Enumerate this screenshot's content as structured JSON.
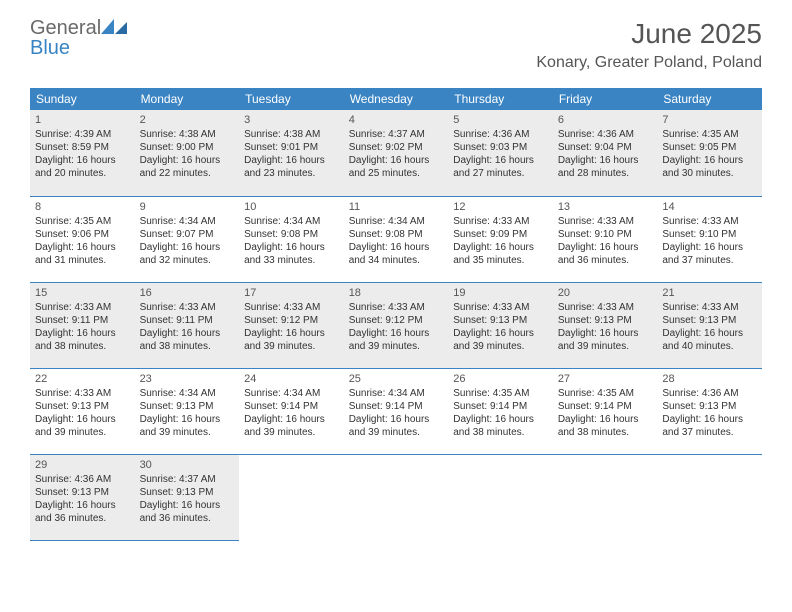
{
  "brand": {
    "general": "General",
    "blue": "Blue"
  },
  "header": {
    "month_title": "June 2025",
    "location": "Konary, Greater Poland, Poland"
  },
  "colors": {
    "header_bg": "#3a84c4",
    "header_text": "#ffffff",
    "shaded_bg": "#ececec",
    "border": "#3a84c4",
    "title_text": "#555555",
    "body_text": "#333333"
  },
  "calendar": {
    "day_headers": [
      "Sunday",
      "Monday",
      "Tuesday",
      "Wednesday",
      "Thursday",
      "Friday",
      "Saturday"
    ],
    "weeks": [
      {
        "shaded": true,
        "days": [
          {
            "n": "1",
            "sr": "Sunrise: 4:39 AM",
            "ss": "Sunset: 8:59 PM",
            "d1": "Daylight: 16 hours",
            "d2": "and 20 minutes."
          },
          {
            "n": "2",
            "sr": "Sunrise: 4:38 AM",
            "ss": "Sunset: 9:00 PM",
            "d1": "Daylight: 16 hours",
            "d2": "and 22 minutes."
          },
          {
            "n": "3",
            "sr": "Sunrise: 4:38 AM",
            "ss": "Sunset: 9:01 PM",
            "d1": "Daylight: 16 hours",
            "d2": "and 23 minutes."
          },
          {
            "n": "4",
            "sr": "Sunrise: 4:37 AM",
            "ss": "Sunset: 9:02 PM",
            "d1": "Daylight: 16 hours",
            "d2": "and 25 minutes."
          },
          {
            "n": "5",
            "sr": "Sunrise: 4:36 AM",
            "ss": "Sunset: 9:03 PM",
            "d1": "Daylight: 16 hours",
            "d2": "and 27 minutes."
          },
          {
            "n": "6",
            "sr": "Sunrise: 4:36 AM",
            "ss": "Sunset: 9:04 PM",
            "d1": "Daylight: 16 hours",
            "d2": "and 28 minutes."
          },
          {
            "n": "7",
            "sr": "Sunrise: 4:35 AM",
            "ss": "Sunset: 9:05 PM",
            "d1": "Daylight: 16 hours",
            "d2": "and 30 minutes."
          }
        ]
      },
      {
        "shaded": false,
        "days": [
          {
            "n": "8",
            "sr": "Sunrise: 4:35 AM",
            "ss": "Sunset: 9:06 PM",
            "d1": "Daylight: 16 hours",
            "d2": "and 31 minutes."
          },
          {
            "n": "9",
            "sr": "Sunrise: 4:34 AM",
            "ss": "Sunset: 9:07 PM",
            "d1": "Daylight: 16 hours",
            "d2": "and 32 minutes."
          },
          {
            "n": "10",
            "sr": "Sunrise: 4:34 AM",
            "ss": "Sunset: 9:08 PM",
            "d1": "Daylight: 16 hours",
            "d2": "and 33 minutes."
          },
          {
            "n": "11",
            "sr": "Sunrise: 4:34 AM",
            "ss": "Sunset: 9:08 PM",
            "d1": "Daylight: 16 hours",
            "d2": "and 34 minutes."
          },
          {
            "n": "12",
            "sr": "Sunrise: 4:33 AM",
            "ss": "Sunset: 9:09 PM",
            "d1": "Daylight: 16 hours",
            "d2": "and 35 minutes."
          },
          {
            "n": "13",
            "sr": "Sunrise: 4:33 AM",
            "ss": "Sunset: 9:10 PM",
            "d1": "Daylight: 16 hours",
            "d2": "and 36 minutes."
          },
          {
            "n": "14",
            "sr": "Sunrise: 4:33 AM",
            "ss": "Sunset: 9:10 PM",
            "d1": "Daylight: 16 hours",
            "d2": "and 37 minutes."
          }
        ]
      },
      {
        "shaded": true,
        "days": [
          {
            "n": "15",
            "sr": "Sunrise: 4:33 AM",
            "ss": "Sunset: 9:11 PM",
            "d1": "Daylight: 16 hours",
            "d2": "and 38 minutes."
          },
          {
            "n": "16",
            "sr": "Sunrise: 4:33 AM",
            "ss": "Sunset: 9:11 PM",
            "d1": "Daylight: 16 hours",
            "d2": "and 38 minutes."
          },
          {
            "n": "17",
            "sr": "Sunrise: 4:33 AM",
            "ss": "Sunset: 9:12 PM",
            "d1": "Daylight: 16 hours",
            "d2": "and 39 minutes."
          },
          {
            "n": "18",
            "sr": "Sunrise: 4:33 AM",
            "ss": "Sunset: 9:12 PM",
            "d1": "Daylight: 16 hours",
            "d2": "and 39 minutes."
          },
          {
            "n": "19",
            "sr": "Sunrise: 4:33 AM",
            "ss": "Sunset: 9:13 PM",
            "d1": "Daylight: 16 hours",
            "d2": "and 39 minutes."
          },
          {
            "n": "20",
            "sr": "Sunrise: 4:33 AM",
            "ss": "Sunset: 9:13 PM",
            "d1": "Daylight: 16 hours",
            "d2": "and 39 minutes."
          },
          {
            "n": "21",
            "sr": "Sunrise: 4:33 AM",
            "ss": "Sunset: 9:13 PM",
            "d1": "Daylight: 16 hours",
            "d2": "and 40 minutes."
          }
        ]
      },
      {
        "shaded": false,
        "days": [
          {
            "n": "22",
            "sr": "Sunrise: 4:33 AM",
            "ss": "Sunset: 9:13 PM",
            "d1": "Daylight: 16 hours",
            "d2": "and 39 minutes."
          },
          {
            "n": "23",
            "sr": "Sunrise: 4:34 AM",
            "ss": "Sunset: 9:13 PM",
            "d1": "Daylight: 16 hours",
            "d2": "and 39 minutes."
          },
          {
            "n": "24",
            "sr": "Sunrise: 4:34 AM",
            "ss": "Sunset: 9:14 PM",
            "d1": "Daylight: 16 hours",
            "d2": "and 39 minutes."
          },
          {
            "n": "25",
            "sr": "Sunrise: 4:34 AM",
            "ss": "Sunset: 9:14 PM",
            "d1": "Daylight: 16 hours",
            "d2": "and 39 minutes."
          },
          {
            "n": "26",
            "sr": "Sunrise: 4:35 AM",
            "ss": "Sunset: 9:14 PM",
            "d1": "Daylight: 16 hours",
            "d2": "and 38 minutes."
          },
          {
            "n": "27",
            "sr": "Sunrise: 4:35 AM",
            "ss": "Sunset: 9:14 PM",
            "d1": "Daylight: 16 hours",
            "d2": "and 38 minutes."
          },
          {
            "n": "28",
            "sr": "Sunrise: 4:36 AM",
            "ss": "Sunset: 9:13 PM",
            "d1": "Daylight: 16 hours",
            "d2": "and 37 minutes."
          }
        ]
      },
      {
        "shaded": true,
        "days": [
          {
            "n": "29",
            "sr": "Sunrise: 4:36 AM",
            "ss": "Sunset: 9:13 PM",
            "d1": "Daylight: 16 hours",
            "d2": "and 36 minutes."
          },
          {
            "n": "30",
            "sr": "Sunrise: 4:37 AM",
            "ss": "Sunset: 9:13 PM",
            "d1": "Daylight: 16 hours",
            "d2": "and 36 minutes."
          },
          null,
          null,
          null,
          null,
          null
        ]
      }
    ]
  }
}
